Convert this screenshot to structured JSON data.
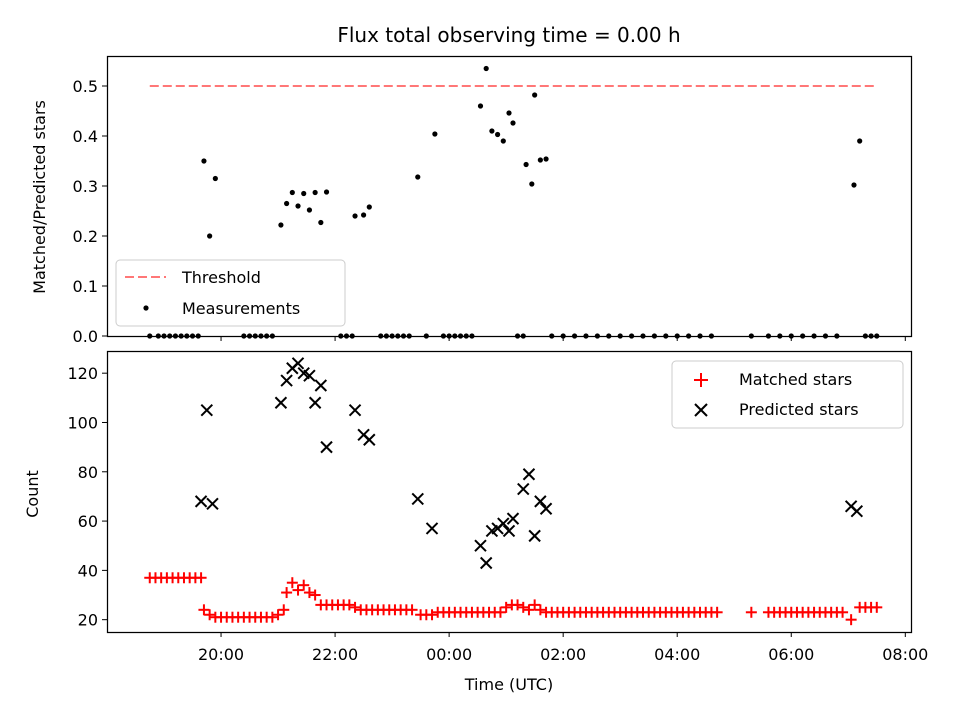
{
  "figure": {
    "title": "Flux total observing time = 0.00 h"
  },
  "chart_data": [
    {
      "type": "scatter",
      "ylabel": "Matched/Predicted stars",
      "xlabel": "",
      "x_unit": "hours after 00:00 UTC (negative = previous evening)",
      "xlim": [
        -6,
        8.1
      ],
      "ylim": [
        0,
        0.56
      ],
      "y_ticks": [
        "0.0",
        "0.1",
        "0.2",
        "0.3",
        "0.4",
        "0.5"
      ],
      "grid": false,
      "legend_placement": "lower-left",
      "threshold": {
        "name": "Threshold",
        "value": 0.5,
        "x_range": [
          -5.25,
          7.5
        ],
        "color": "#ff7777"
      },
      "series": [
        {
          "name": "Measurements",
          "color": "#000000",
          "points": [
            [
              -4.3,
              0.35
            ],
            [
              -4.2,
              0.2
            ],
            [
              -4.1,
              0.315
            ],
            [
              -2.95,
              0.222
            ],
            [
              -2.85,
              0.265
            ],
            [
              -2.75,
              0.287
            ],
            [
              -2.65,
              0.26
            ],
            [
              -2.55,
              0.285
            ],
            [
              -2.45,
              0.252
            ],
            [
              -2.35,
              0.287
            ],
            [
              -2.25,
              0.227
            ],
            [
              -2.15,
              0.288
            ],
            [
              -1.65,
              0.24
            ],
            [
              -1.5,
              0.242
            ],
            [
              -1.4,
              0.258
            ],
            [
              -0.55,
              0.318
            ],
            [
              -0.25,
              0.404
            ],
            [
              0.55,
              0.46
            ],
            [
              0.65,
              0.535
            ],
            [
              0.75,
              0.41
            ],
            [
              0.85,
              0.403
            ],
            [
              0.95,
              0.39
            ],
            [
              1.05,
              0.446
            ],
            [
              1.12,
              0.426
            ],
            [
              1.35,
              0.343
            ],
            [
              1.45,
              0.304
            ],
            [
              1.5,
              0.482
            ],
            [
              1.6,
              0.352
            ],
            [
              1.7,
              0.354
            ],
            [
              7.1,
              0.302
            ],
            [
              7.2,
              0.39
            ],
            [
              -5.25,
              0
            ],
            [
              -5.1,
              0
            ],
            [
              -5.0,
              0
            ],
            [
              -4.9,
              0
            ],
            [
              -4.8,
              0
            ],
            [
              -4.7,
              0
            ],
            [
              -4.6,
              0
            ],
            [
              -4.5,
              0
            ],
            [
              -4.4,
              0
            ],
            [
              -3.6,
              0
            ],
            [
              -3.5,
              0
            ],
            [
              -3.4,
              0
            ],
            [
              -3.3,
              0
            ],
            [
              -3.2,
              0
            ],
            [
              -3.1,
              0
            ],
            [
              -1.9,
              0
            ],
            [
              -1.8,
              0
            ],
            [
              -1.7,
              0
            ],
            [
              -1.2,
              0
            ],
            [
              -1.1,
              0
            ],
            [
              -1.0,
              0
            ],
            [
              -0.9,
              0
            ],
            [
              -0.8,
              0
            ],
            [
              -0.7,
              0
            ],
            [
              -0.4,
              0
            ],
            [
              -0.1,
              0
            ],
            [
              0.0,
              0
            ],
            [
              0.1,
              0
            ],
            [
              0.2,
              0
            ],
            [
              0.3,
              0
            ],
            [
              0.4,
              0
            ],
            [
              1.2,
              0
            ],
            [
              1.3,
              0
            ],
            [
              1.8,
              0
            ],
            [
              2.0,
              0
            ],
            [
              2.2,
              0
            ],
            [
              2.4,
              0
            ],
            [
              2.6,
              0
            ],
            [
              2.8,
              0
            ],
            [
              3.0,
              0
            ],
            [
              3.2,
              0
            ],
            [
              3.4,
              0
            ],
            [
              3.6,
              0
            ],
            [
              3.8,
              0
            ],
            [
              4.0,
              0
            ],
            [
              4.2,
              0
            ],
            [
              4.4,
              0
            ],
            [
              4.6,
              0
            ],
            [
              5.3,
              0
            ],
            [
              5.6,
              0
            ],
            [
              5.8,
              0
            ],
            [
              6.0,
              0
            ],
            [
              6.2,
              0
            ],
            [
              6.4,
              0
            ],
            [
              6.6,
              0
            ],
            [
              6.8,
              0
            ],
            [
              7.3,
              0
            ],
            [
              7.4,
              0
            ],
            [
              7.5,
              0
            ]
          ]
        }
      ]
    },
    {
      "type": "scatter",
      "ylabel": "Count",
      "xlabel": "Time (UTC)",
      "x_unit": "hours after 00:00 UTC (negative = previous evening)",
      "xlim": [
        -6,
        8.1
      ],
      "x_ticks": [
        {
          "value": -4,
          "label": "20:00"
        },
        {
          "value": -2,
          "label": "22:00"
        },
        {
          "value": 0,
          "label": "00:00"
        },
        {
          "value": 2,
          "label": "02:00"
        },
        {
          "value": 4,
          "label": "04:00"
        },
        {
          "value": 6,
          "label": "06:00"
        },
        {
          "value": 8,
          "label": "08:00"
        }
      ],
      "ylim": [
        15,
        129
      ],
      "y_ticks": [
        "20",
        "40",
        "60",
        "80",
        "100",
        "120"
      ],
      "grid": false,
      "legend_placement": "top-right",
      "series": [
        {
          "name": "Matched stars",
          "marker": "plus",
          "color": "#ff0000",
          "points": [
            [
              -5.25,
              37
            ],
            [
              -5.15,
              37
            ],
            [
              -5.05,
              37
            ],
            [
              -4.95,
              37
            ],
            [
              -4.85,
              37
            ],
            [
              -4.75,
              37
            ],
            [
              -4.65,
              37
            ],
            [
              -4.55,
              37
            ],
            [
              -4.45,
              37
            ],
            [
              -4.35,
              37
            ],
            [
              -4.3,
              24
            ],
            [
              -4.2,
              22
            ],
            [
              -4.1,
              21
            ],
            [
              -4.0,
              21
            ],
            [
              -3.9,
              21
            ],
            [
              -3.8,
              21
            ],
            [
              -3.7,
              21
            ],
            [
              -3.6,
              21
            ],
            [
              -3.5,
              21
            ],
            [
              -3.4,
              21
            ],
            [
              -3.3,
              21
            ],
            [
              -3.2,
              21
            ],
            [
              -3.1,
              21
            ],
            [
              -3.0,
              22
            ],
            [
              -2.9,
              24
            ],
            [
              -2.85,
              31
            ],
            [
              -2.75,
              35
            ],
            [
              -2.65,
              32
            ],
            [
              -2.55,
              34
            ],
            [
              -2.45,
              31
            ],
            [
              -2.35,
              30
            ],
            [
              -2.25,
              26
            ],
            [
              -2.15,
              26
            ],
            [
              -2.05,
              26
            ],
            [
              -1.95,
              26
            ],
            [
              -1.85,
              26
            ],
            [
              -1.75,
              26
            ],
            [
              -1.65,
              25
            ],
            [
              -1.55,
              24
            ],
            [
              -1.45,
              24
            ],
            [
              -1.35,
              24
            ],
            [
              -1.25,
              24
            ],
            [
              -1.15,
              24
            ],
            [
              -1.05,
              24
            ],
            [
              -0.95,
              24
            ],
            [
              -0.85,
              24
            ],
            [
              -0.75,
              24
            ],
            [
              -0.65,
              24
            ],
            [
              -0.5,
              22
            ],
            [
              -0.4,
              22
            ],
            [
              -0.3,
              22
            ],
            [
              -0.2,
              23
            ],
            [
              -0.1,
              23
            ],
            [
              0.0,
              23
            ],
            [
              0.1,
              23
            ],
            [
              0.2,
              23
            ],
            [
              0.3,
              23
            ],
            [
              0.4,
              23
            ],
            [
              0.5,
              23
            ],
            [
              0.6,
              23
            ],
            [
              0.7,
              23
            ],
            [
              0.8,
              23
            ],
            [
              0.9,
              23
            ],
            [
              1.0,
              25
            ],
            [
              1.1,
              26
            ],
            [
              1.2,
              26
            ],
            [
              1.3,
              25
            ],
            [
              1.4,
              24
            ],
            [
              1.5,
              26
            ],
            [
              1.6,
              24
            ],
            [
              1.7,
              23
            ],
            [
              1.8,
              23
            ],
            [
              1.9,
              23
            ],
            [
              2.0,
              23
            ],
            [
              2.1,
              23
            ],
            [
              2.2,
              23
            ],
            [
              2.3,
              23
            ],
            [
              2.4,
              23
            ],
            [
              2.5,
              23
            ],
            [
              2.6,
              23
            ],
            [
              2.7,
              23
            ],
            [
              2.8,
              23
            ],
            [
              2.9,
              23
            ],
            [
              3.0,
              23
            ],
            [
              3.1,
              23
            ],
            [
              3.2,
              23
            ],
            [
              3.3,
              23
            ],
            [
              3.4,
              23
            ],
            [
              3.5,
              23
            ],
            [
              3.6,
              23
            ],
            [
              3.7,
              23
            ],
            [
              3.8,
              23
            ],
            [
              3.9,
              23
            ],
            [
              4.0,
              23
            ],
            [
              4.1,
              23
            ],
            [
              4.2,
              23
            ],
            [
              4.3,
              23
            ],
            [
              4.4,
              23
            ],
            [
              4.5,
              23
            ],
            [
              4.6,
              23
            ],
            [
              4.7,
              23
            ],
            [
              5.3,
              23
            ],
            [
              5.6,
              23
            ],
            [
              5.7,
              23
            ],
            [
              5.8,
              23
            ],
            [
              5.9,
              23
            ],
            [
              6.0,
              23
            ],
            [
              6.1,
              23
            ],
            [
              6.2,
              23
            ],
            [
              6.3,
              23
            ],
            [
              6.4,
              23
            ],
            [
              6.5,
              23
            ],
            [
              6.6,
              23
            ],
            [
              6.7,
              23
            ],
            [
              6.8,
              23
            ],
            [
              6.9,
              23
            ],
            [
              7.05,
              20
            ],
            [
              7.2,
              25
            ],
            [
              7.3,
              25
            ],
            [
              7.4,
              25
            ],
            [
              7.5,
              25
            ]
          ]
        },
        {
          "name": "Predicted stars",
          "marker": "x",
          "color": "#000000",
          "points": [
            [
              -4.35,
              68
            ],
            [
              -4.25,
              105
            ],
            [
              -4.15,
              67
            ],
            [
              -2.95,
              108
            ],
            [
              -2.85,
              117
            ],
            [
              -2.75,
              122
            ],
            [
              -2.65,
              124
            ],
            [
              -2.55,
              120
            ],
            [
              -2.45,
              119
            ],
            [
              -2.35,
              108
            ],
            [
              -2.25,
              115
            ],
            [
              -2.15,
              90
            ],
            [
              -1.65,
              105
            ],
            [
              -1.5,
              95
            ],
            [
              -1.4,
              93
            ],
            [
              -0.55,
              69
            ],
            [
              -0.3,
              57
            ],
            [
              0.55,
              50
            ],
            [
              0.65,
              43
            ],
            [
              0.75,
              56
            ],
            [
              0.85,
              57
            ],
            [
              0.95,
              59
            ],
            [
              1.05,
              56
            ],
            [
              1.12,
              61
            ],
            [
              1.3,
              73
            ],
            [
              1.4,
              79
            ],
            [
              1.5,
              54
            ],
            [
              1.6,
              68
            ],
            [
              1.7,
              65
            ],
            [
              7.05,
              66
            ],
            [
              7.15,
              64
            ]
          ]
        }
      ]
    }
  ]
}
